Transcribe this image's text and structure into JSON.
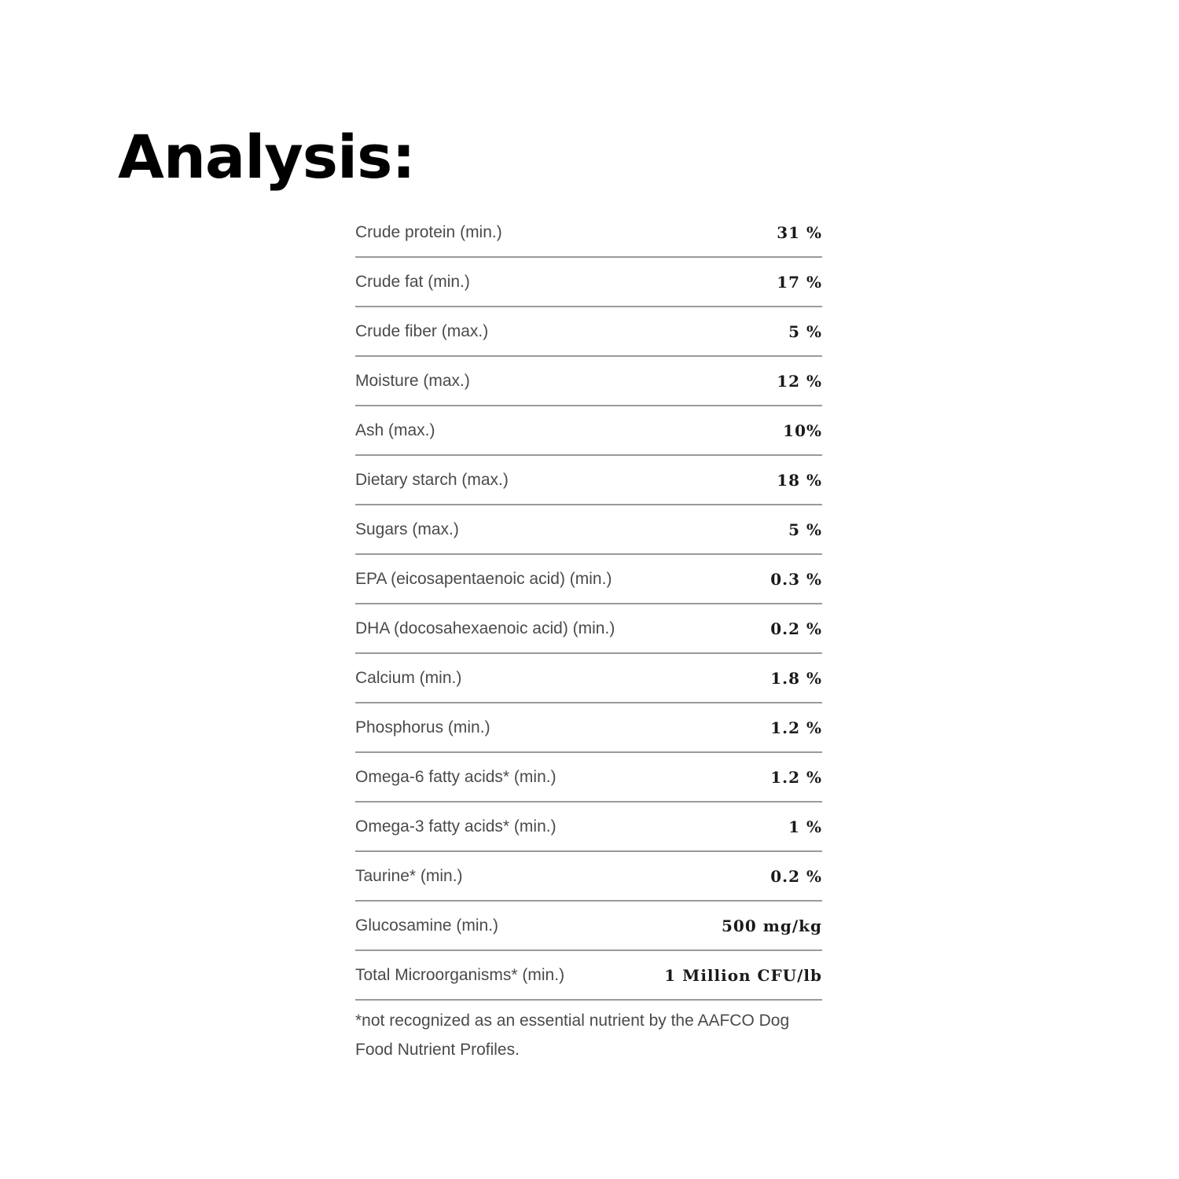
{
  "title": "Analysis:",
  "rows": [
    {
      "label": "Crude protein (min.)",
      "value": "31 %"
    },
    {
      "label": "Crude fat (min.)",
      "value": "17 %"
    },
    {
      "label": "Crude fiber (max.)",
      "value": "5 %"
    },
    {
      "label": "Moisture (max.)",
      "value": "12 %"
    },
    {
      "label": "Ash (max.)",
      "value": "10%"
    },
    {
      "label": "Dietary starch (max.)",
      "value": "18 %"
    },
    {
      "label": "Sugars (max.)",
      "value": "5 %"
    },
    {
      "label": "EPA (eicosapentaenoic acid) (min.)",
      "value": "0.3 %"
    },
    {
      "label": "DHA (docosahexaenoic acid) (min.)",
      "value": "0.2 %"
    },
    {
      "label": "Calcium (min.)",
      "value": "1.8 %"
    },
    {
      "label": "Phosphorus (min.)",
      "value": "1.2 %"
    },
    {
      "label": "Omega-6 fatty acids* (min.)",
      "value": "1.2 %"
    },
    {
      "label": "Omega-3 fatty acids* (min.)",
      "value": "1 %"
    },
    {
      "label": "Taurine* (min.)",
      "value": "0.2 %"
    },
    {
      "label": "Glucosamine (min.)",
      "value": "500 mg/kg"
    },
    {
      "label": "Total Microorganisms* (min.)",
      "value": "1 Million CFU/lb"
    }
  ],
  "footnote": "*not recognized as an essential nutrient by the AAFCO Dog Food Nutrient Profiles."
}
